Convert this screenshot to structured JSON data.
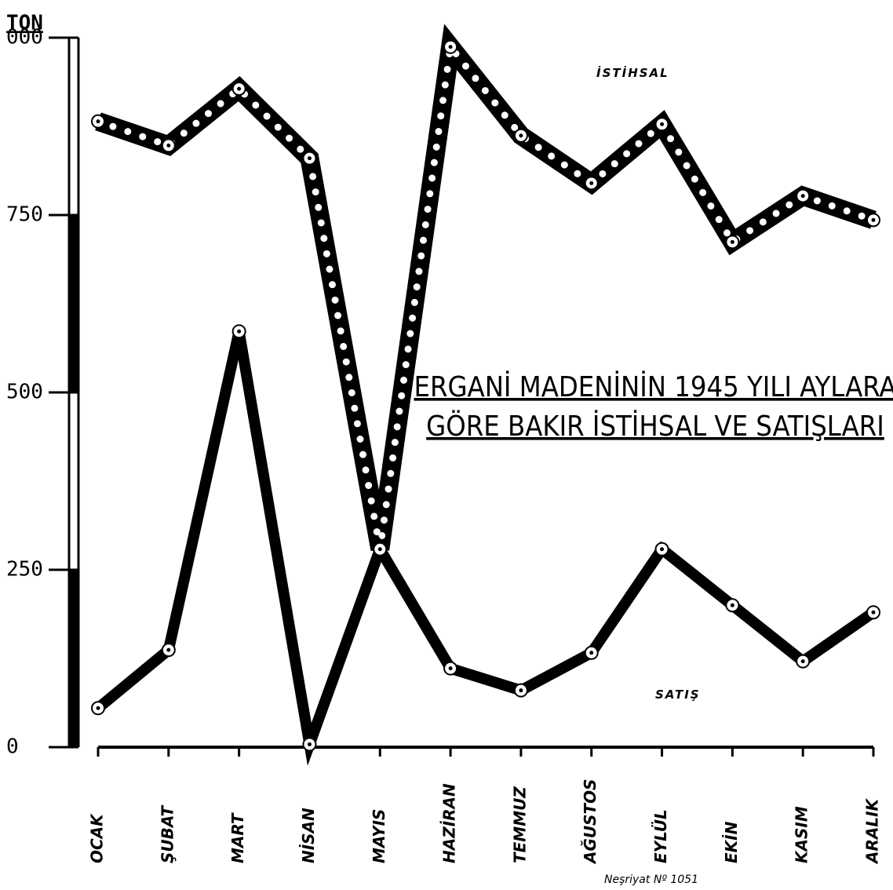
{
  "chart_data": {
    "type": "line",
    "title_lines": [
      "ERGANİ MADENİNİN 1945 YILI AYLARA",
      "GÖRE BAKIR İSTİHSAL VE SATIŞLARI"
    ],
    "y_label": "TON",
    "note": "Neşriyat Nº 1051",
    "categories": [
      "OCAK",
      "ŞUBAT",
      "MART",
      "NİSAN",
      "MAYIS",
      "HAZİRAN",
      "TEMMUZ",
      "AĞUSTOS",
      "EYLÜL",
      "EKİN",
      "KASIM",
      "ARALIK"
    ],
    "series": [
      {
        "name": "İSTİHSAL",
        "color": "#000000",
        "values": [
          882,
          848,
          928,
          830,
          279,
          987,
          862,
          795,
          878,
          712,
          777,
          743
        ]
      },
      {
        "name": "SATIŞ",
        "color": "#000000",
        "values": [
          55,
          137,
          586,
          4,
          279,
          111,
          80,
          133,
          279,
          200,
          121,
          190
        ]
      }
    ],
    "ylim": [
      0,
      1000
    ],
    "yticks": [
      0,
      250,
      500,
      750,
      {
        "value": 1000,
        "label": "000"
      }
    ]
  }
}
